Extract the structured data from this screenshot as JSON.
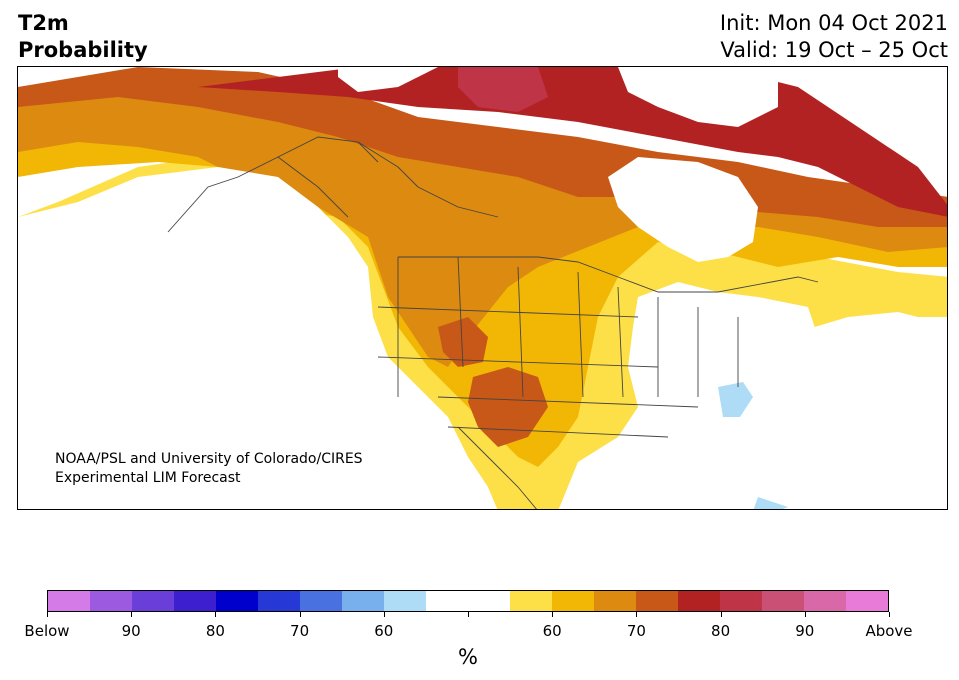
{
  "header": {
    "title_line1": "T2m",
    "title_line2": "Probability",
    "init": "Init: Mon 04 Oct 2021",
    "valid": "Valid: 19 Oct – 25 Oct"
  },
  "map": {
    "credit_line1": "NOAA/PSL and University of Colorado/CIRES",
    "credit_line2": "Experimental LIM Forecast",
    "region": "North America"
  },
  "colorbar": {
    "unit": "%",
    "colors": [
      "#d57be8",
      "#9b5ae0",
      "#6a3fd9",
      "#3d1fd0",
      "#0000cc",
      "#2638d6",
      "#4a71e0",
      "#78b0ee",
      "#aedcf7",
      "#ffffff",
      "#ffffff",
      "#fde047",
      "#f2b705",
      "#dd8a10",
      "#c75818",
      "#b22222",
      "#c03448",
      "#cb5075",
      "#d868a8",
      "#e87ad8"
    ],
    "tick_labels": [
      "Below",
      "90",
      "80",
      "70",
      "60",
      "",
      "60",
      "70",
      "80",
      "90",
      "Above"
    ]
  }
}
